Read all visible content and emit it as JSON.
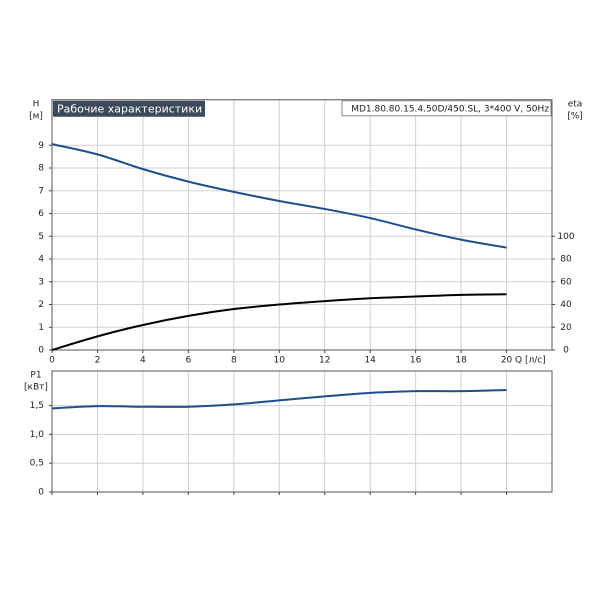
{
  "chart_data": [
    {
      "type": "line",
      "title": "Рабочие характеристики",
      "subtitle": "MD1.80.80.15.4.50D/450.SL, 3*400 V, 50Hz",
      "ylabel": "H",
      "yunit": "[м]",
      "y2label": "eta",
      "y2unit": "[%]",
      "xlabel": "Q [л/с]",
      "x": [
        0,
        2,
        4,
        6,
        8,
        10,
        12,
        14,
        16,
        18,
        20
      ],
      "series": [
        {
          "color": "#1f4e8c",
          "values": [
            9.05,
            8.6,
            7.95,
            7.4,
            6.95,
            6.55,
            6.2,
            5.8,
            5.3,
            4.85,
            4.5
          ]
        },
        {
          "color": "#000000",
          "axis": "y2",
          "values": [
            0,
            12,
            22,
            30,
            36,
            40,
            43,
            45.5,
            47,
            48.5,
            49
          ]
        }
      ],
      "xlim": [
        0,
        22
      ],
      "xticks": [
        0,
        2,
        4,
        6,
        8,
        10,
        12,
        14,
        16,
        18,
        20
      ],
      "ylim": [
        0,
        11
      ],
      "yticks": [
        0,
        1,
        2,
        3,
        4,
        5,
        6,
        7,
        8,
        9
      ],
      "y2lim": [
        0,
        220
      ],
      "y2ticks": [
        0,
        20,
        40,
        60,
        80,
        100
      ],
      "grid": true
    },
    {
      "type": "line",
      "ylabel": "P1",
      "yunit": "[кВт]",
      "x": [
        0,
        2,
        4,
        6,
        8,
        10,
        12,
        14,
        16,
        18,
        20
      ],
      "series": [
        {
          "color": "#1f4e8c",
          "values": [
            1.45,
            1.49,
            1.48,
            1.48,
            1.52,
            1.59,
            1.66,
            1.72,
            1.75,
            1.75,
            1.77
          ]
        }
      ],
      "xlim": [
        0,
        22
      ],
      "xticks": [
        0,
        2,
        4,
        6,
        8,
        10,
        12,
        14,
        16,
        18,
        20
      ],
      "ylim": [
        0,
        2.1
      ],
      "yticks": [
        0,
        {
          "value": 0.5,
          "label": "0,5"
        },
        {
          "value": 1,
          "label": "1,0"
        },
        {
          "value": 1.5,
          "label": "1,5"
        }
      ],
      "grid": true
    }
  ]
}
